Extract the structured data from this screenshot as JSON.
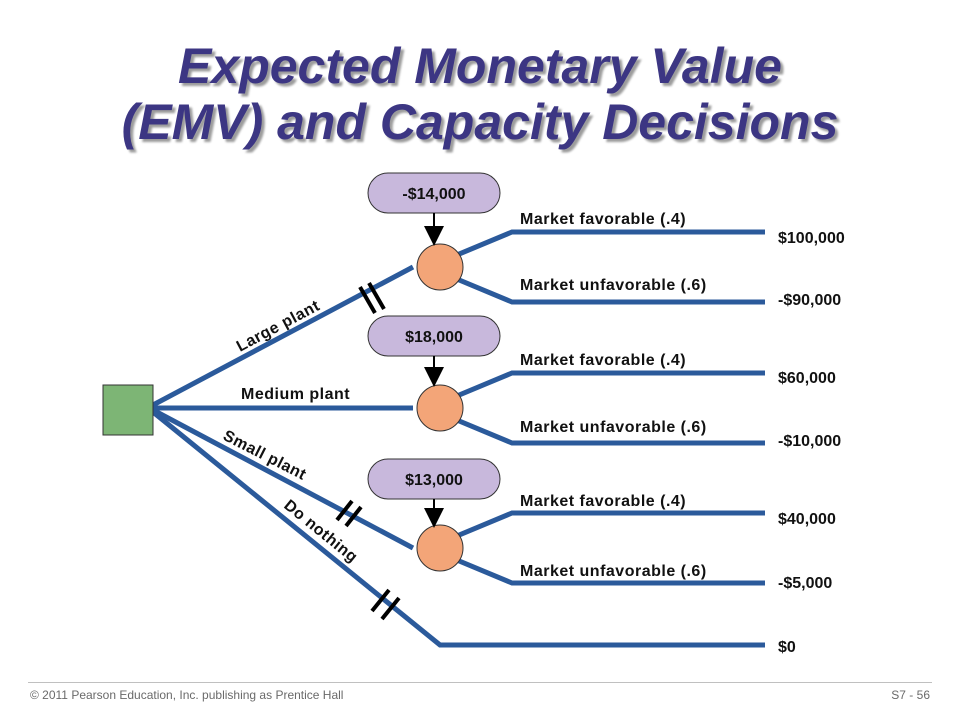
{
  "title": {
    "line1": "Expected Monetary Value",
    "line2": "(EMV) and Capacity Decisions"
  },
  "alternatives": {
    "large": "Large plant",
    "medium": "Medium plant",
    "small": "Small plant",
    "none": "Do nothing"
  },
  "emv": {
    "large": "-$14,000",
    "medium": "$18,000",
    "small": "$13,000"
  },
  "outcomes": {
    "favorable": "Market favorable (.4)",
    "unfavorable": "Market unfavorable (.6)"
  },
  "payoffs": {
    "large_fav": "$100,000",
    "large_unfav": "-$90,000",
    "medium_fav": "$60,000",
    "medium_unfav": "-$10,000",
    "small_fav": "$40,000",
    "small_unfav": "-$5,000",
    "none": "$0"
  },
  "footer": {
    "left": "© 2011 Pearson Education, Inc. publishing as Prentice Hall",
    "right": "S7 - 56"
  },
  "colors": {
    "title": "#3c3683",
    "branch": "#2b5a9b",
    "decision_node": "#7db575",
    "chance_node": "#f3a578",
    "emv_box": "#c8b8dc"
  }
}
